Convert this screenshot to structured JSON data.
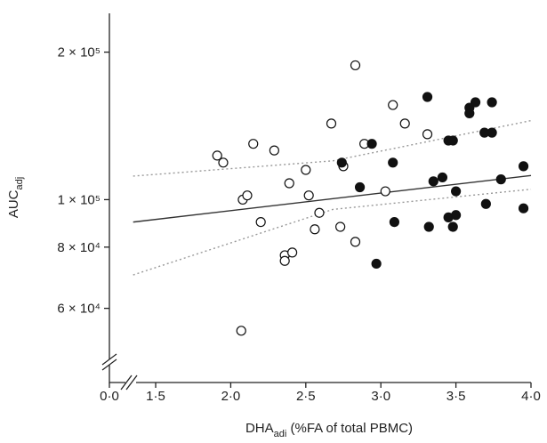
{
  "chart_data": {
    "type": "scatter",
    "ylabel": "AUC",
    "ylabel_sub": "adj",
    "xlabel": "DHA",
    "xlabel_sub": "adi",
    "xlabel_rest": " (%FA of total PBMC)",
    "log_y": true,
    "axis_break": true,
    "xlim": [
      1.35,
      4.0
    ],
    "ylim": [
      48000,
      240000
    ],
    "xticks": [
      {
        "value": 0,
        "label": "0·0"
      },
      {
        "value": 1.5,
        "label": "1·5"
      },
      {
        "value": 2.0,
        "label": "2·0"
      },
      {
        "value": 2.5,
        "label": "2·5"
      },
      {
        "value": 3.0,
        "label": "3·0"
      },
      {
        "value": 3.5,
        "label": "3·5"
      },
      {
        "value": 4.0,
        "label": "4·0"
      }
    ],
    "yticks": [
      {
        "value": 60000,
        "label": "6 × 10⁴"
      },
      {
        "value": 80000,
        "label": "8 × 10⁴"
      },
      {
        "value": 100000,
        "label": "1 × 10⁵"
      },
      {
        "value": 200000,
        "label": "2 × 10⁵"
      }
    ],
    "series": [
      {
        "marker": "open",
        "color": "#111",
        "x": [
          1.91,
          1.95,
          2.15,
          2.08,
          2.11,
          2.2,
          2.29,
          2.39,
          2.5,
          2.52,
          2.36,
          2.36,
          2.41,
          2.56,
          2.59,
          2.67,
          2.73,
          2.75,
          2.83,
          2.89,
          2.83,
          3.08,
          3.16,
          3.03,
          3.31,
          2.07
        ],
        "values": [
          123000,
          119000,
          130000,
          100000,
          102000,
          90000,
          126000,
          108000,
          115000,
          102000,
          77000,
          75000,
          78000,
          87000,
          94000,
          143000,
          88000,
          117000,
          188000,
          130000,
          82000,
          156000,
          143000,
          104000,
          136000,
          54000
        ]
      },
      {
        "marker": "filled",
        "color": "#111",
        "x": [
          2.94,
          3.08,
          3.31,
          2.74,
          2.86,
          3.09,
          2.97,
          3.32,
          3.35,
          3.41,
          3.45,
          3.48,
          3.45,
          3.48,
          3.5,
          3.59,
          3.59,
          3.63,
          3.69,
          3.74,
          3.74,
          3.7,
          3.8,
          3.95,
          3.95,
          3.5
        ],
        "values": [
          130000,
          119000,
          162000,
          119000,
          106000,
          90000,
          74000,
          88000,
          109000,
          111000,
          132000,
          132000,
          92000,
          88000,
          104000,
          154000,
          150000,
          158000,
          137000,
          137000,
          158000,
          98000,
          110000,
          117000,
          96000,
          93000
        ]
      }
    ],
    "fit": {
      "color": "#333",
      "x": [
        1.35,
        4.0
      ],
      "values": [
        90000,
        112000
      ]
    },
    "ci_upper": {
      "color": "#999",
      "x": [
        1.35,
        2.68,
        4.0
      ],
      "values": [
        111700,
        120000,
        145000
      ]
    },
    "ci_lower": {
      "color": "#999",
      "x": [
        1.35,
        2.68,
        4.0
      ],
      "values": [
        70200,
        95500,
        105000
      ]
    }
  }
}
